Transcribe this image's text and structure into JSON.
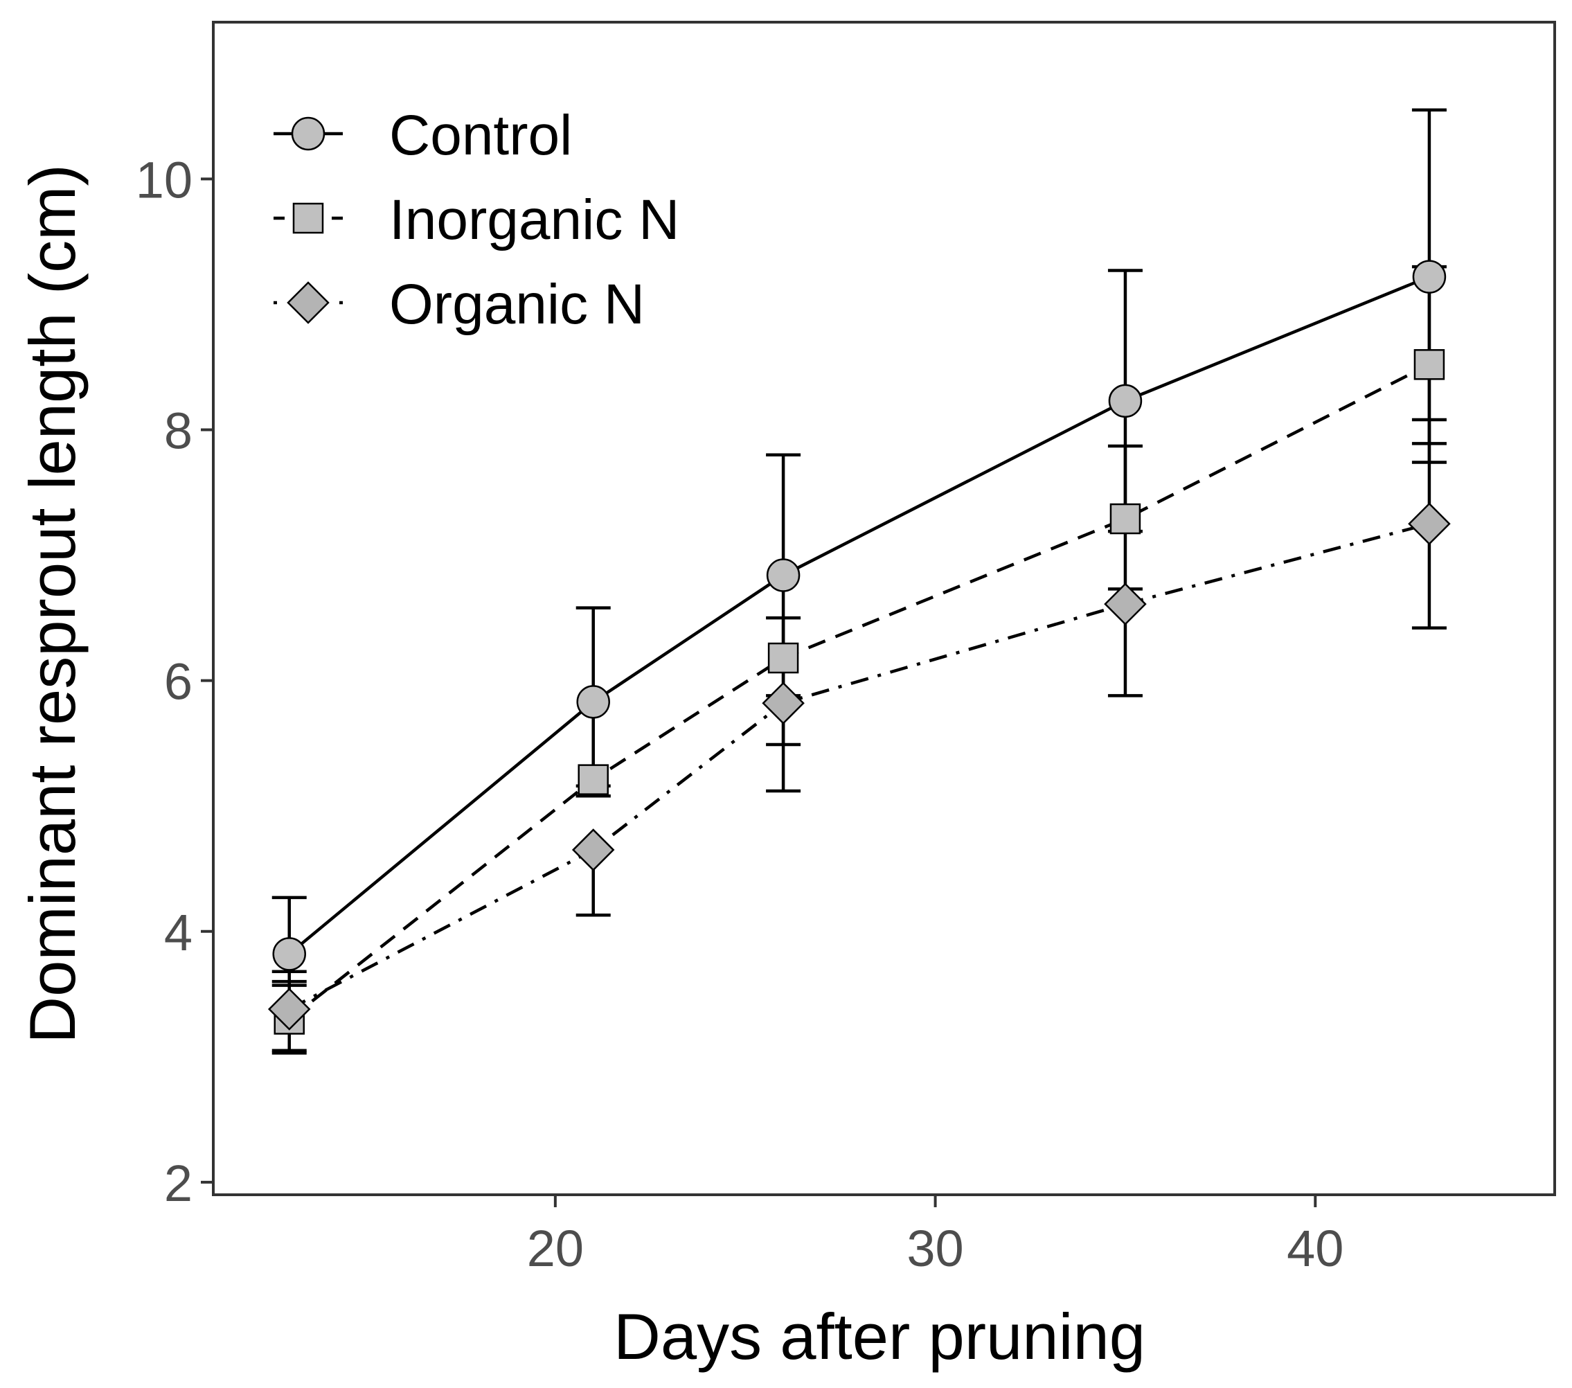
{
  "chart_data": {
    "type": "line",
    "title": "",
    "xlabel": "Days after pruning",
    "ylabel": "Dominant resprout length (cm)",
    "xlim": [
      11.0,
      46.3
    ],
    "ylim": [
      1.9,
      11.25
    ],
    "xticks": [
      20,
      30,
      40
    ],
    "xtick_labels": [
      "20",
      "30",
      "40"
    ],
    "yticks": [
      2,
      4,
      6,
      8,
      10
    ],
    "ytick_labels": [
      "2",
      "4",
      "6",
      "8",
      "10"
    ],
    "grid": false,
    "legend_position": "top-left",
    "series": [
      {
        "name": "Control",
        "marker": "circle",
        "line_style": "solid",
        "x": [
          13,
          21,
          26,
          35,
          43
        ],
        "y": [
          3.82,
          5.83,
          6.84,
          8.23,
          9.22
        ],
        "err_low": [
          3.57,
          5.08,
          5.88,
          7.19,
          7.89
        ],
        "err_high": [
          4.27,
          6.58,
          7.8,
          9.27,
          10.55
        ]
      },
      {
        "name": "Inorganic N",
        "marker": "square",
        "line_style": "dashed",
        "x": [
          13,
          21,
          26,
          35,
          43
        ],
        "y": [
          3.3,
          5.21,
          6.18,
          7.29,
          8.52
        ],
        "err_low": [
          3.03,
          5.08,
          5.49,
          6.73,
          7.74
        ],
        "err_high": [
          3.68,
          5.16,
          6.5,
          7.87,
          9.3
        ]
      },
      {
        "name": "Organic N",
        "marker": "diamond",
        "line_style": "dashdot",
        "x": [
          13,
          21,
          26,
          35,
          43
        ],
        "y": [
          3.38,
          4.65,
          5.82,
          6.61,
          7.25
        ],
        "err_low": [
          3.05,
          4.13,
          5.12,
          5.88,
          6.42
        ],
        "err_high": [
          3.6,
          4.65,
          5.82,
          6.61,
          8.08
        ]
      }
    ],
    "colors": {
      "marker_fill_circle": "#c0c0c0",
      "marker_fill_square": "#c0c0c0",
      "marker_fill_diamond": "#b4b4b4",
      "line": "#000000",
      "tick_label": "#4d4d4d",
      "axis_label": "#000000",
      "panel_border": "#333333"
    }
  }
}
